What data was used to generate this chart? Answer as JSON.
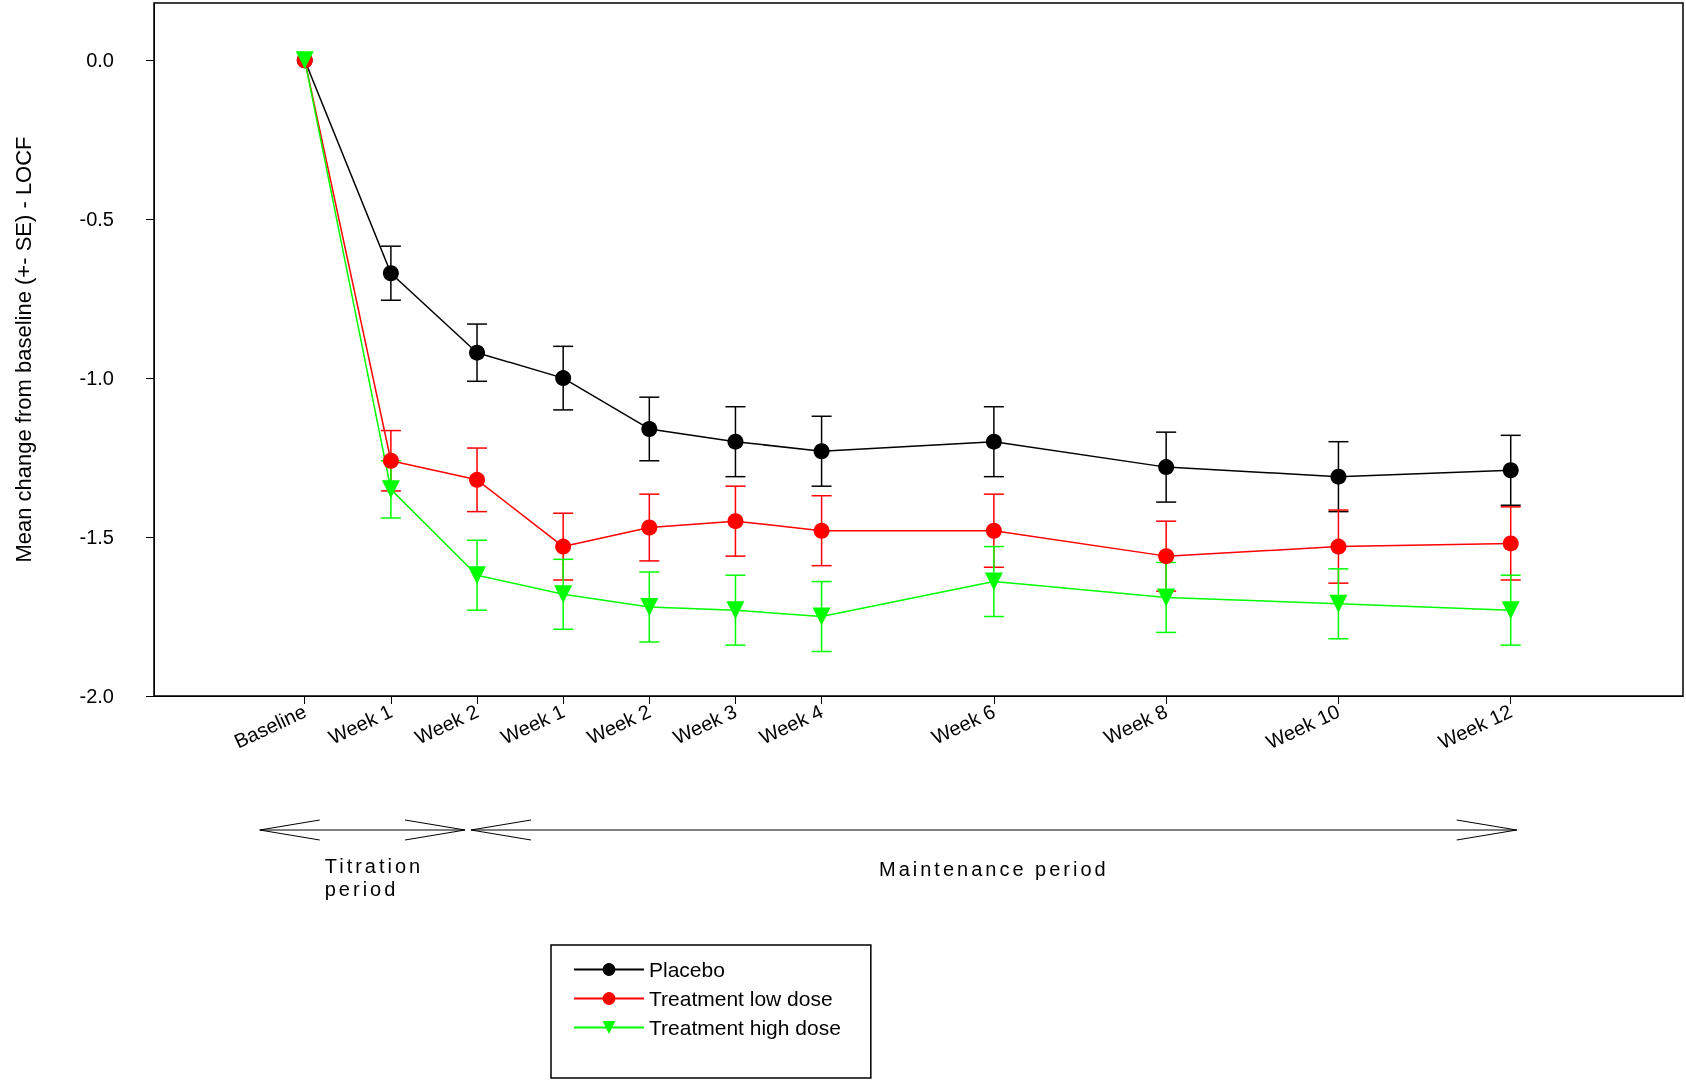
{
  "chart_data": {
    "type": "line",
    "ylabel": "Mean change from baseline (+- SE) - LOCF",
    "categories": [
      "Baseline",
      "Week 1",
      "Week 2",
      "Week 1",
      "Week 2",
      "Week 3",
      "Week 4",
      null,
      "Week 6",
      null,
      "Week 8",
      null,
      "Week 10",
      null,
      "Week 12"
    ],
    "ylim": [
      -2,
      0.18
    ],
    "yticks": [
      {
        "value": -2,
        "label": "-2.0"
      },
      -1.5,
      {
        "value": -1,
        "label": "-1.0"
      },
      -0.5,
      {
        "value": 0,
        "label": "0.0"
      }
    ],
    "series": [
      {
        "name": "Placebo",
        "color": "#000000",
        "marker": "circle",
        "values": [
          0,
          -0.67,
          -0.92,
          -1.0,
          -1.16,
          -1.2,
          -1.23,
          null,
          -1.2,
          null,
          -1.28,
          null,
          -1.31,
          null,
          -1.29
        ],
        "errors": [
          null,
          0.085,
          0.09,
          0.1,
          0.1,
          0.11,
          0.11,
          null,
          0.11,
          null,
          0.11,
          null,
          0.11,
          null,
          0.11
        ]
      },
      {
        "name": "Treatment low dose",
        "color": "#ff0000",
        "marker": "circle",
        "values": [
          0,
          -1.26,
          -1.32,
          -1.53,
          -1.47,
          -1.45,
          -1.48,
          null,
          -1.48,
          null,
          -1.56,
          null,
          -1.53,
          null,
          -1.52
        ],
        "errors": [
          null,
          0.095,
          0.1,
          0.105,
          0.105,
          0.11,
          0.11,
          null,
          0.115,
          null,
          0.11,
          null,
          0.115,
          null,
          0.115
        ]
      },
      {
        "name": "Treatment high dose",
        "color": "#00ff00",
        "marker": "triangle",
        "values": [
          0,
          -1.35,
          -1.62,
          -1.68,
          -1.72,
          -1.73,
          -1.75,
          null,
          -1.64,
          null,
          -1.69,
          null,
          -1.71,
          null,
          -1.73
        ],
        "errors": [
          null,
          0.09,
          0.11,
          0.11,
          0.11,
          0.11,
          0.11,
          null,
          0.11,
          null,
          0.11,
          null,
          0.11,
          null,
          0.11
        ]
      }
    ],
    "annotations": [
      "Titration period",
      "Maintenance period"
    ],
    "grid": false,
    "legend": "bottom"
  }
}
